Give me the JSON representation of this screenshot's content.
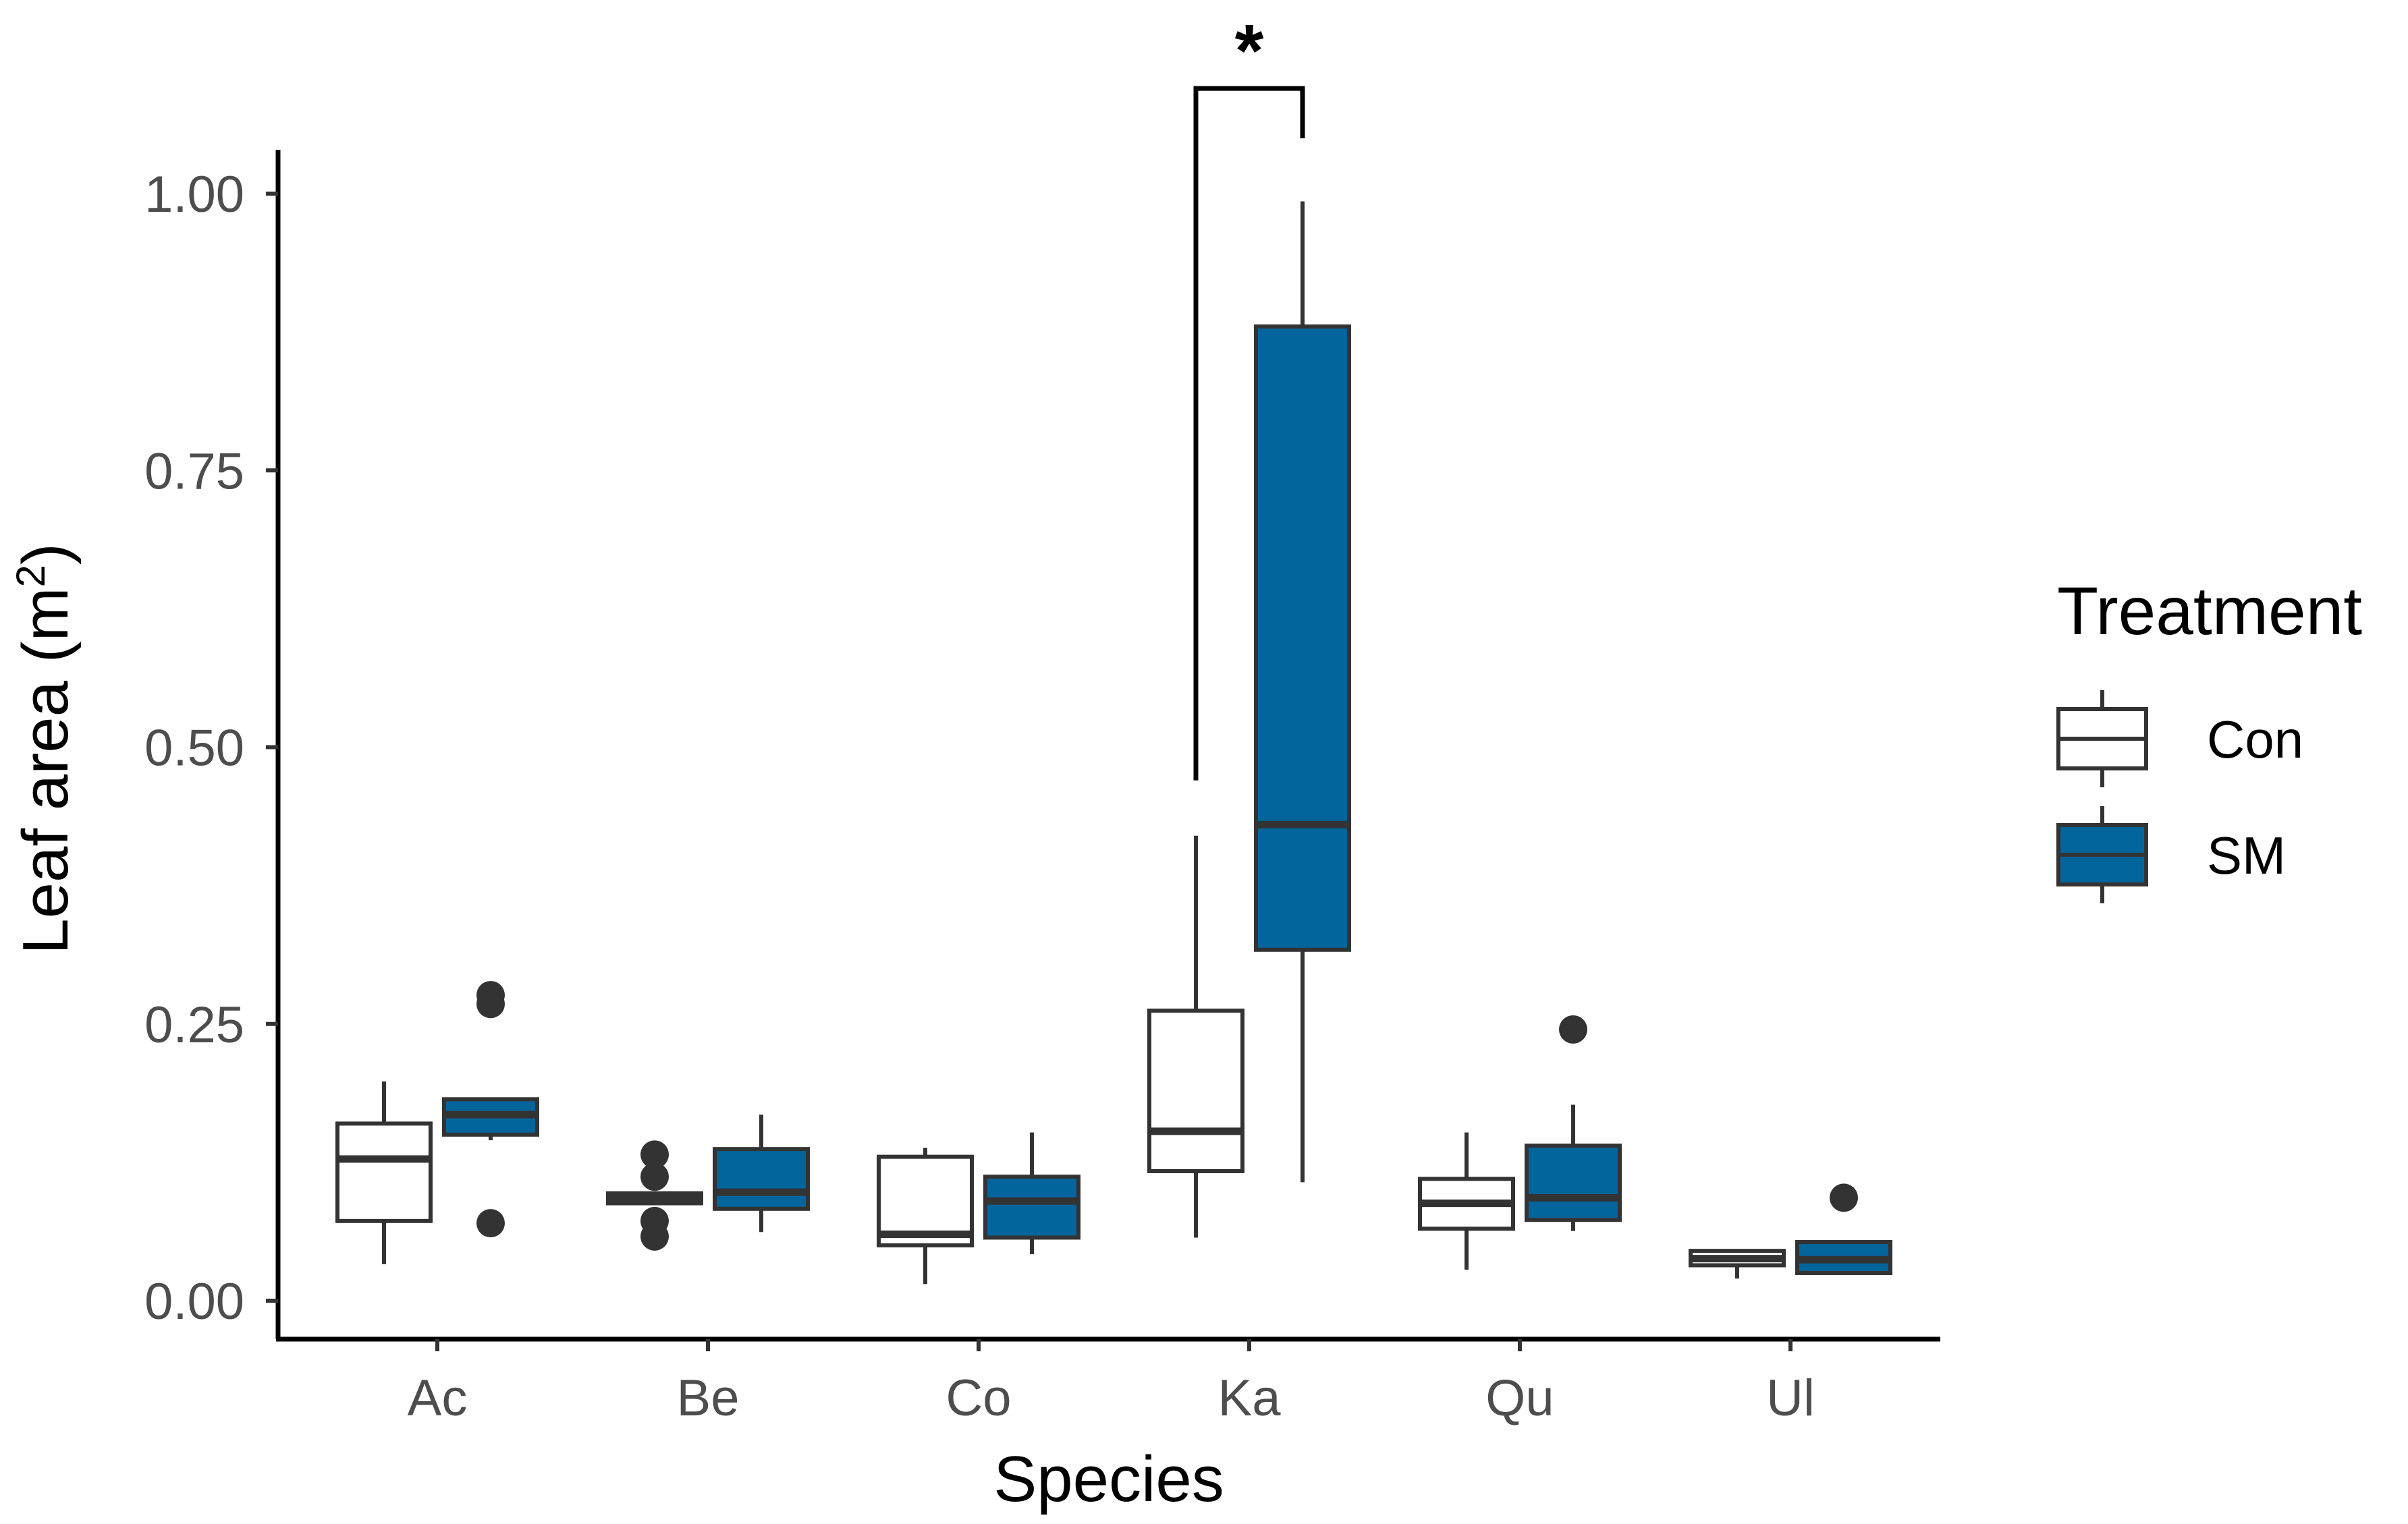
{
  "chart_data": {
    "type": "boxplot",
    "title": "",
    "xlabel": "Species",
    "ylabel": "Leaf area (m",
    "ylabel_superscript": "2",
    "ylabel_close": ")",
    "ylim": [
      -0.035,
      1.05
    ],
    "yticks": [
      0,
      0.25,
      0.5,
      0.75,
      1.0
    ],
    "ytick_labels": [
      "0.00",
      "0.25",
      "0.50",
      "0.75",
      "1.00"
    ],
    "categories": [
      "Ac",
      "Be",
      "Co",
      "Ka",
      "Qu",
      "Ul"
    ],
    "legend": {
      "title": "Treatment",
      "position": "right",
      "entries": [
        {
          "name": "Con",
          "fill": "#ffffff"
        },
        {
          "name": "SM",
          "fill": "#04659d"
        }
      ]
    },
    "colors": {
      "outline": "#333333",
      "axis": "#000000",
      "con_fill": "#ffffff",
      "sm_fill": "#04659d"
    },
    "series": [
      {
        "name": "Con",
        "boxes": [
          {
            "category": "Ac",
            "q1": 0.072,
            "median": 0.128,
            "q3": 0.16,
            "whisker_low": 0.033,
            "whisker_high": 0.198,
            "outliers": []
          },
          {
            "category": "Be",
            "q1": 0.088,
            "median": 0.093,
            "q3": 0.097,
            "whisker_low": 0.088,
            "whisker_high": 0.097,
            "outliers": [
              0.058,
              0.072,
              0.112,
              0.132
            ]
          },
          {
            "category": "Co",
            "q1": 0.05,
            "median": 0.06,
            "q3": 0.13,
            "whisker_low": 0.015,
            "whisker_high": 0.138,
            "outliers": []
          },
          {
            "category": "Ka",
            "q1": 0.117,
            "median": 0.153,
            "q3": 0.262,
            "whisker_low": 0.057,
            "whisker_high": 0.42,
            "outliers": []
          },
          {
            "category": "Qu",
            "q1": 0.065,
            "median": 0.088,
            "q3": 0.11,
            "whisker_low": 0.028,
            "whisker_high": 0.152,
            "outliers": []
          },
          {
            "category": "Ul",
            "q1": 0.032,
            "median": 0.038,
            "q3": 0.045,
            "whisker_low": 0.02,
            "whisker_high": 0.045,
            "outliers": []
          }
        ]
      },
      {
        "name": "SM",
        "boxes": [
          {
            "category": "Ac",
            "q1": 0.15,
            "median": 0.168,
            "q3": 0.182,
            "whisker_low": 0.145,
            "whisker_high": 0.182,
            "outliers": [
              0.07,
              0.268,
              0.276
            ]
          },
          {
            "category": "Be",
            "q1": 0.083,
            "median": 0.098,
            "q3": 0.137,
            "whisker_low": 0.062,
            "whisker_high": 0.168,
            "outliers": []
          },
          {
            "category": "Co",
            "q1": 0.057,
            "median": 0.09,
            "q3": 0.112,
            "whisker_low": 0.042,
            "whisker_high": 0.152,
            "outliers": []
          },
          {
            "category": "Ka",
            "q1": 0.317,
            "median": 0.43,
            "q3": 0.88,
            "whisker_low": 0.107,
            "whisker_high": 0.993,
            "outliers": []
          },
          {
            "category": "Qu",
            "q1": 0.073,
            "median": 0.093,
            "q3": 0.14,
            "whisker_low": 0.063,
            "whisker_high": 0.177,
            "outliers": [
              0.245
            ]
          },
          {
            "category": "Ul",
            "q1": 0.025,
            "median": 0.037,
            "q3": 0.053,
            "whisker_low": 0.025,
            "whisker_high": 0.053,
            "outliers": [
              0.093
            ]
          }
        ]
      }
    ],
    "annotations": [
      {
        "type": "significance_bracket",
        "category": "Ka",
        "text": "*",
        "left_y": 0.47,
        "right_y": 1.05,
        "top_y": 1.095
      }
    ]
  }
}
